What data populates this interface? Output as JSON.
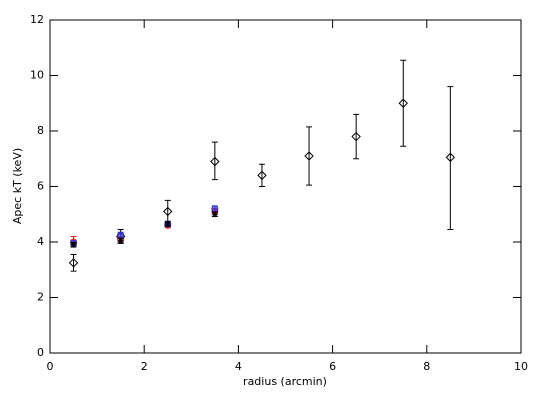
{
  "chart_data": {
    "type": "scatter",
    "xlabel": "radius (arcmin)",
    "ylabel": "Apec kT (keV)",
    "xlim": [
      0,
      10
    ],
    "ylim": [
      0,
      12
    ],
    "xticks": [
      0,
      2,
      4,
      6,
      8,
      10
    ],
    "yticks": [
      0,
      2,
      4,
      6,
      8,
      10,
      12
    ],
    "series": [
      {
        "marker": "diamond",
        "color": "#000000",
        "x": [
          0.5,
          1.5,
          2.5,
          3.5,
          4.5,
          5.5,
          6.5,
          7.5,
          8.5
        ],
        "values": [
          3.25,
          4.2,
          5.1,
          6.9,
          6.4,
          7.1,
          7.8,
          9.0,
          7.05
        ],
        "err_minus": [
          0.3,
          0.25,
          0.5,
          0.65,
          0.4,
          1.05,
          0.8,
          1.55,
          2.6
        ],
        "err_plus": [
          0.3,
          0.25,
          0.4,
          0.7,
          0.4,
          1.05,
          0.8,
          1.55,
          2.55
        ]
      },
      {
        "marker": "circle",
        "color": "#e8202a",
        "x": [
          0.5,
          1.5,
          2.5,
          3.5
        ],
        "values": [
          4.0,
          4.1,
          4.6,
          5.1
        ],
        "err_minus": [
          0.15,
          0.08,
          0.08,
          0.1
        ],
        "err_plus": [
          0.2,
          0.08,
          0.08,
          0.1
        ]
      },
      {
        "marker": "circle",
        "color": "#3030d0",
        "x": [
          0.5,
          1.5,
          2.5,
          3.5
        ],
        "values": [
          3.95,
          4.25,
          4.65,
          5.2
        ],
        "err_minus": [
          0.1,
          0.1,
          0.1,
          0.1
        ],
        "err_plus": [
          0.1,
          0.1,
          0.1,
          0.1
        ]
      },
      {
        "marker": "asterisk",
        "color": "#000000",
        "x": [
          0.5,
          1.5,
          2.5,
          3.5
        ],
        "values": [
          3.9,
          4.05,
          4.65,
          5.0
        ],
        "err_minus": [
          0.08,
          0.08,
          0.08,
          0.08
        ],
        "err_plus": [
          0.08,
          0.08,
          0.08,
          0.08
        ]
      }
    ]
  }
}
